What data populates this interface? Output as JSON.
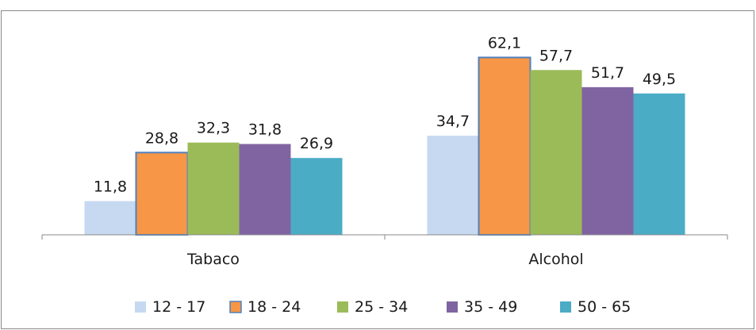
{
  "chart_data": {
    "type": "bar",
    "categories": [
      "Tabaco",
      "Alcohol"
    ],
    "series": [
      {
        "name": "12 - 17",
        "values": [
          11.8,
          34.7
        ],
        "labels": [
          "11,8",
          "34,7"
        ],
        "color": "#c6d9f1",
        "outline": "none"
      },
      {
        "name": "18 - 24",
        "values": [
          28.8,
          62.1
        ],
        "labels": [
          "28,8",
          "62,1"
        ],
        "color": "#f79646",
        "outline": "#4f81bd"
      },
      {
        "name": "25 - 34",
        "values": [
          32.3,
          57.7
        ],
        "labels": [
          "32,3",
          "57,7"
        ],
        "color": "#9bbb59",
        "outline": "none"
      },
      {
        "name": "35 - 49",
        "values": [
          31.8,
          51.7
        ],
        "labels": [
          "31,8",
          "51,7"
        ],
        "color": "#8064a2",
        "outline": "none"
      },
      {
        "name": "50 - 65",
        "values": [
          26.9,
          49.5
        ],
        "labels": [
          "26,9",
          "49,5"
        ],
        "color": "#4bacc6",
        "outline": "none"
      }
    ],
    "title": "",
    "xlabel": "",
    "ylabel": "",
    "ylim": [
      0,
      70
    ],
    "grid": false,
    "legend": "bottom"
  }
}
